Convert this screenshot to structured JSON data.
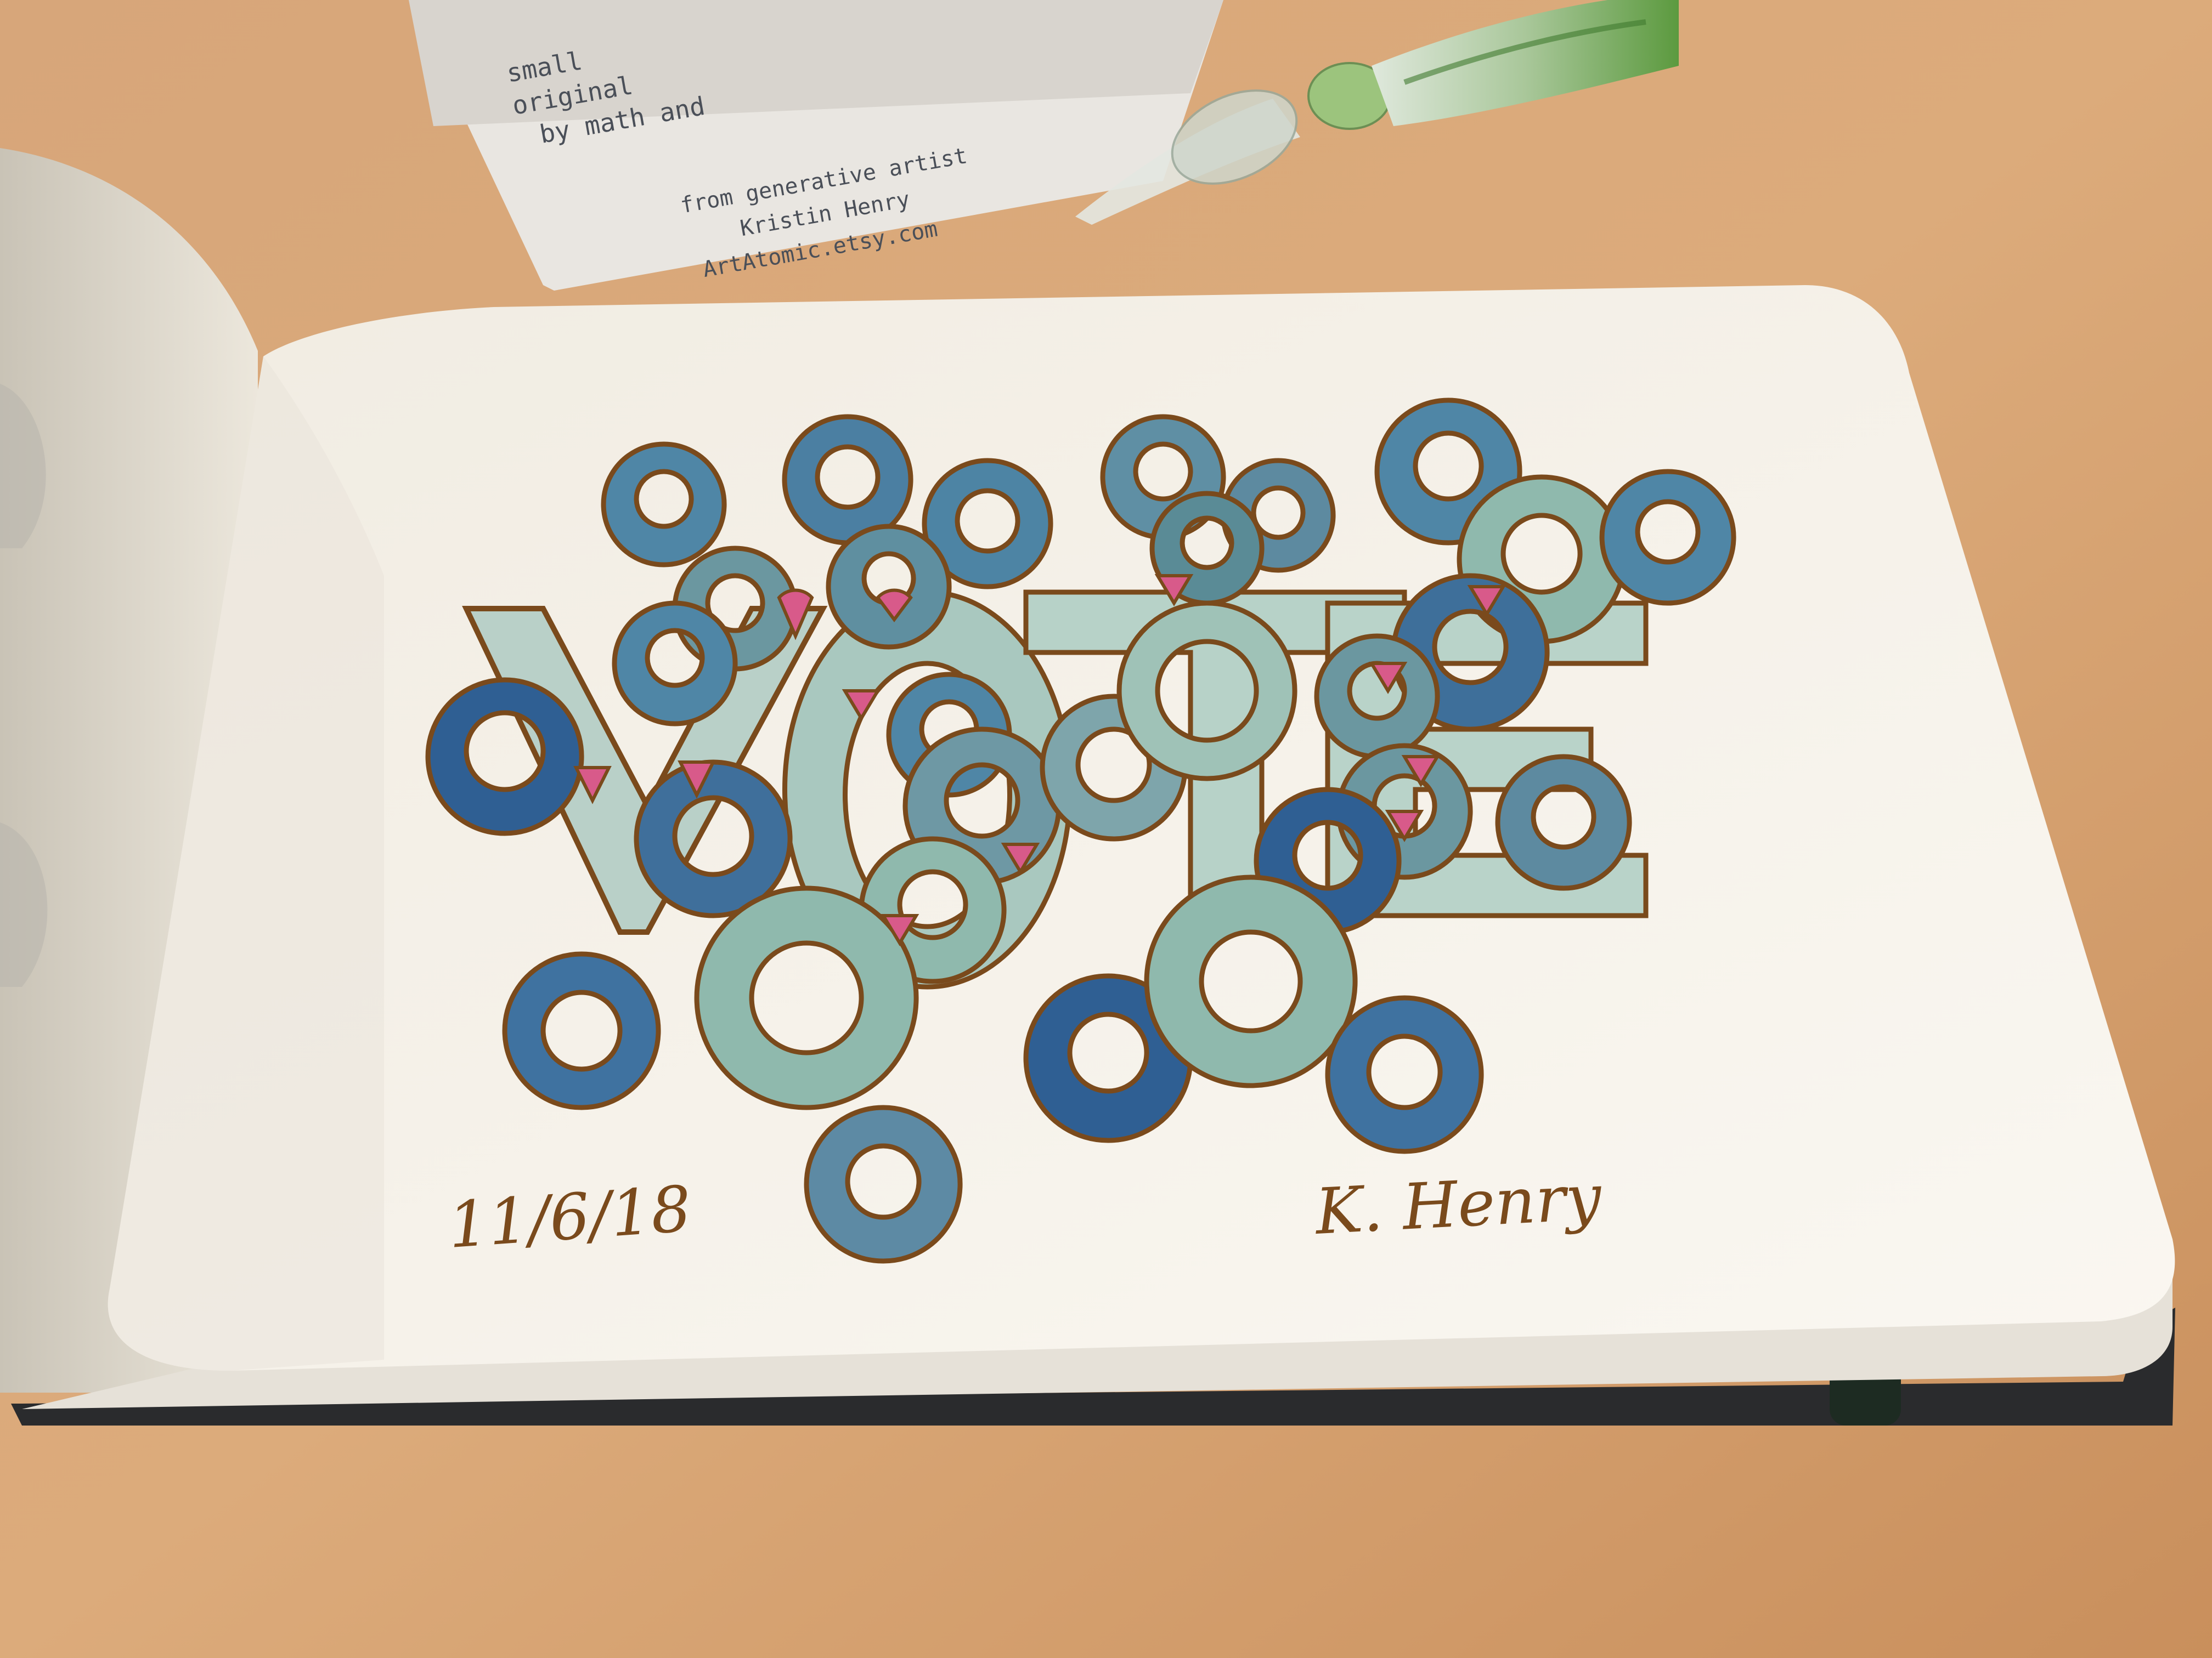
{
  "scene": {
    "description_colors": {
      "table": "#d9a877",
      "table_dark": "#b9824f",
      "paper": "#f7f3ec",
      "ink_brown": "#7a4a1c",
      "blue_deep": "#2f5f93",
      "blue_mid": "#4f86a6",
      "teal_light": "#8fb9ad",
      "pink": "#d85a8a",
      "pen_green": "#6ea94e"
    }
  },
  "business_card": {
    "line1": "small",
    "line2": "original",
    "line3": "by math and",
    "line4": "from generative artist",
    "line5": "Kristin Henry",
    "line6": "ArtAtomic.etsy.com"
  },
  "drawing": {
    "word": "VOTE"
  },
  "notebook": {
    "date": "11/6/18",
    "signature": "K. Henry"
  }
}
